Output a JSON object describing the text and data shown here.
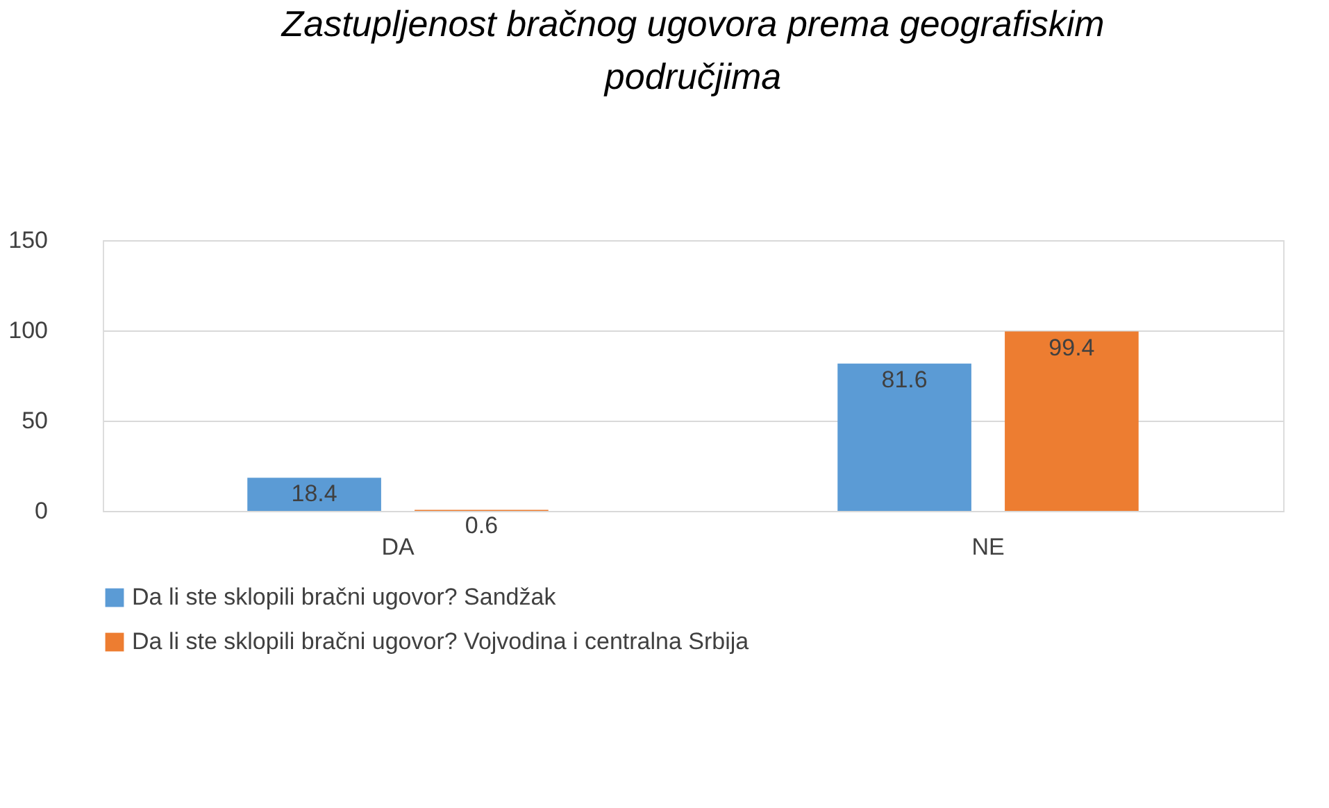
{
  "chart_data": {
    "type": "bar",
    "title": "Zastupljenost bračnog ugovora prema geografiskim područjima",
    "categories": [
      "DA",
      "NE"
    ],
    "series": [
      {
        "name": "Da li ste sklopili bračni ugovor? Sandžak",
        "color": "#5b9bd5",
        "values": [
          18.4,
          81.6
        ]
      },
      {
        "name": "Da li ste sklopili bračni ugovor? Vojvodina i centralna Srbija",
        "color": "#ed7d31",
        "values": [
          0.6,
          99.4
        ]
      }
    ],
    "ylim": [
      0,
      150
    ],
    "yticks": [
      0,
      50,
      100,
      150
    ],
    "grid": "y",
    "legend": "bottom",
    "data_labels": true
  }
}
